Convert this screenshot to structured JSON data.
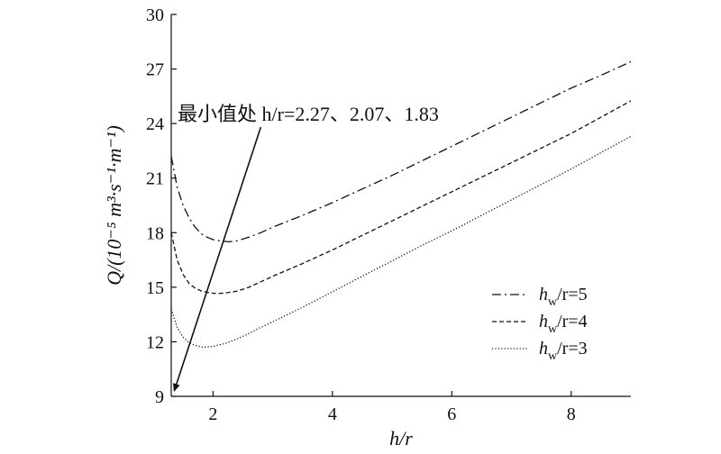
{
  "chart_data": {
    "type": "line",
    "xlabel": "h/r",
    "ylabel": "Q/(10⁻⁵ m³·s⁻¹·m⁻¹)",
    "xlim": [
      1.3,
      9.0
    ],
    "ylim": [
      9,
      30
    ],
    "xticks": [
      2,
      4,
      6,
      8
    ],
    "yticks": [
      9,
      12,
      15,
      18,
      21,
      24,
      27,
      30
    ],
    "grid": false,
    "legend_position": "bottom-right",
    "annotation": {
      "text": "最小值处 h/r=2.27、2.07、1.83",
      "arrow_from": [
        2.8,
        23.8
      ],
      "arrow_to": [
        1.35,
        9.3
      ]
    },
    "series": [
      {
        "name": "hw/r=5",
        "style": "dashdot",
        "x": [
          1.3,
          1.4,
          1.5,
          1.6,
          1.7,
          1.8,
          1.9,
          2.0,
          2.1,
          2.2,
          2.27,
          2.4,
          2.6,
          2.8,
          3.0,
          3.5,
          4.0,
          4.5,
          5.0,
          5.5,
          6.0,
          6.5,
          7.0,
          7.5,
          8.0,
          8.5,
          9.0
        ],
        "y": [
          22.2,
          20.5,
          19.5,
          18.8,
          18.3,
          17.95,
          17.75,
          17.62,
          17.56,
          17.52,
          17.5,
          17.55,
          17.75,
          18.0,
          18.3,
          18.95,
          19.65,
          20.4,
          21.15,
          21.95,
          22.75,
          23.55,
          24.35,
          25.15,
          25.95,
          26.65,
          27.4
        ]
      },
      {
        "name": "hw/r=4",
        "style": "dashed",
        "x": [
          1.3,
          1.4,
          1.5,
          1.6,
          1.7,
          1.8,
          1.9,
          2.0,
          2.07,
          2.2,
          2.4,
          2.6,
          2.8,
          3.0,
          3.5,
          4.0,
          4.5,
          5.0,
          5.5,
          6.0,
          6.5,
          7.0,
          7.5,
          8.0,
          8.5,
          9.0
        ],
        "y": [
          18.0,
          16.5,
          15.7,
          15.2,
          14.95,
          14.8,
          14.72,
          14.67,
          14.65,
          14.68,
          14.78,
          15.0,
          15.3,
          15.6,
          16.3,
          17.05,
          17.85,
          18.65,
          19.45,
          20.25,
          21.05,
          21.85,
          22.65,
          23.45,
          24.35,
          25.25
        ]
      },
      {
        "name": "hw/r=3",
        "style": "dotted",
        "x": [
          1.3,
          1.4,
          1.5,
          1.6,
          1.7,
          1.8,
          1.83,
          1.9,
          2.0,
          2.2,
          2.4,
          2.6,
          2.8,
          3.0,
          3.5,
          4.0,
          4.5,
          5.0,
          5.5,
          6.0,
          6.5,
          7.0,
          7.5,
          8.0,
          8.5,
          9.0
        ],
        "y": [
          13.8,
          12.8,
          12.25,
          11.95,
          11.8,
          11.72,
          11.7,
          11.72,
          11.75,
          11.9,
          12.15,
          12.45,
          12.8,
          13.1,
          13.9,
          14.75,
          15.6,
          16.45,
          17.3,
          18.1,
          18.95,
          19.8,
          20.65,
          21.5,
          22.4,
          23.3
        ]
      }
    ],
    "legend": [
      {
        "label_main": "h",
        "label_sub": "w",
        "label_rest": "/r=5",
        "style": "dashdot"
      },
      {
        "label_main": "h",
        "label_sub": "w",
        "label_rest": "/r=4",
        "style": "dashed"
      },
      {
        "label_main": "h",
        "label_sub": "w",
        "label_rest": "/r=3",
        "style": "dotted"
      }
    ]
  }
}
